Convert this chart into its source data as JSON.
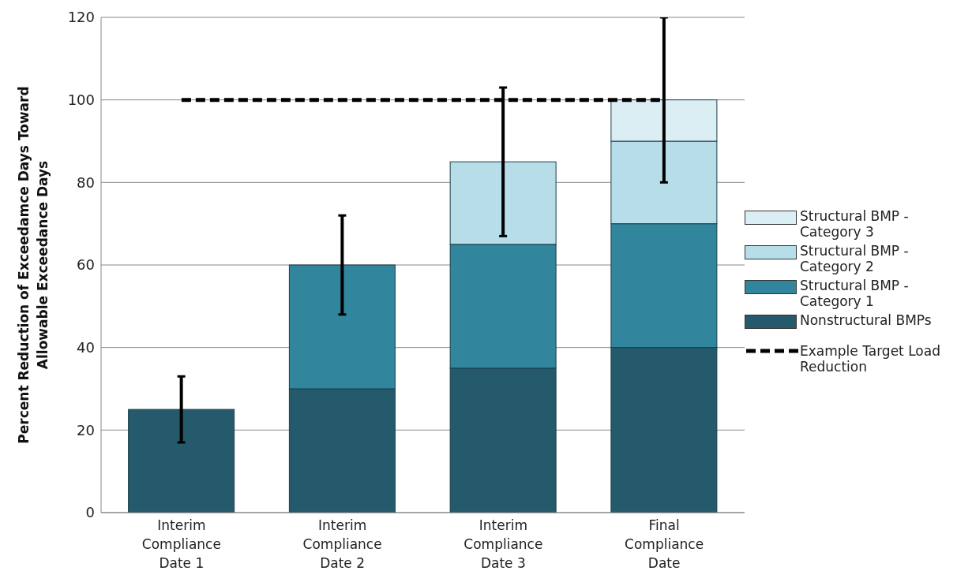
{
  "chart_data": {
    "type": "bar",
    "stacked": true,
    "ylabel": "Percent Reduction of Exceedamce Days Toward Allowable Exceedance Days",
    "categories": [
      "Interim Compliance Date 1",
      "Interim Compliance Date 2",
      "Interim Compliance Date 3",
      "Final Compliance Date"
    ],
    "series": [
      {
        "name": "Nonstructural BMPs",
        "color": "#245a6b",
        "values": [
          25,
          30,
          35,
          40
        ],
        "errors": [
          8,
          null,
          null,
          null
        ]
      },
      {
        "name": "Structural BMP - Category 1",
        "color": "#31859c",
        "values": [
          null,
          30,
          30,
          30
        ],
        "errors": [
          null,
          12,
          null,
          null
        ]
      },
      {
        "name": "Structural BMP - Category 2",
        "color": "#b7dee8",
        "values": [
          null,
          null,
          20,
          20
        ],
        "errors": [
          null,
          null,
          18,
          null
        ]
      },
      {
        "name": "Structural BMP - Category 3",
        "color": "#dbeef3",
        "values": [
          null,
          null,
          null,
          10
        ],
        "errors": [
          null,
          null,
          null,
          20
        ]
      },
      {
        "name": "Example Target Load Reduction",
        "type": "line",
        "color": "#000000",
        "line_style": "dashed",
        "marker": "none",
        "values": [
          100,
          100,
          100,
          100
        ]
      }
    ],
    "ylim": [
      0,
      120
    ],
    "yticks": [
      0,
      20,
      40,
      60,
      80,
      100,
      120
    ],
    "grid": "y",
    "legend": "right"
  }
}
